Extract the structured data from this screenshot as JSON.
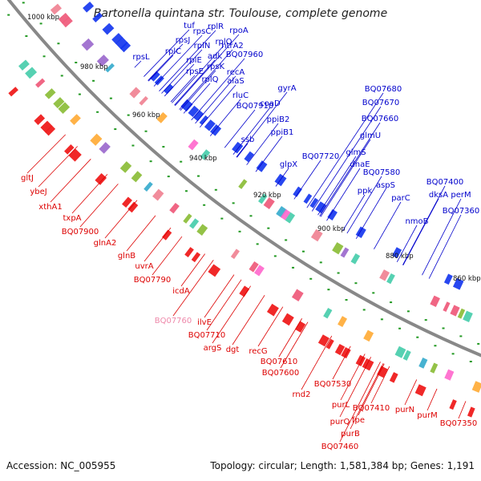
{
  "title": "Bartonella quintana str. Toulouse, complete genome",
  "footer": {
    "accession": "Accession: NC_005955",
    "topology": "Topology: circular; Length: 1,581,384 bp; Genes: 1,191"
  },
  "colors": {
    "forward_labels": "#0000cc",
    "reverse_labels": "#dd0000",
    "pseudo_label": "#ee88aa",
    "backbone": "#888888"
  },
  "kbp_ticks": [
    "1000 kbp",
    "980 kbp",
    "960 kbp",
    "940 kbp",
    "920 kbp",
    "900 kbp",
    "880 kbp",
    "860 kbp"
  ],
  "forward_genes": [
    "rpsL",
    "tuf",
    "rpsJ",
    "rpsC",
    "rplR",
    "rpoA",
    "rplC",
    "rplN",
    "rplO",
    "rplE",
    "adk",
    "htrA2",
    "rpsE",
    "rpsK",
    "BQ07960",
    "recA",
    "rplQ",
    "alaS",
    "rluC",
    "BQ07910",
    "coaD",
    "gyrA",
    "ssb",
    "ppiB2",
    "ppiB1",
    "BQ07680",
    "BQ07670",
    "BQ07660",
    "glmU",
    "BQ07720",
    "glpX",
    "glmS",
    "dnaE",
    "BQ07580",
    "ppk",
    "aspS",
    "parC",
    "BQ07400",
    "nmoB",
    "dksA",
    "perM",
    "BQ07360"
  ],
  "reverse_genes": [
    "gltJ",
    "ybeJ",
    "xthA1",
    "txpA",
    "BQ07900",
    "glnA2",
    "glnB",
    "uvrA",
    "BQ07790",
    "icdA",
    "BQ07760",
    "ilvE",
    "BQ07710",
    "argS",
    "dgt",
    "recG",
    "BQ07610",
    "BQ07600",
    "rnd2",
    "BQ07530",
    "purL",
    "purQ",
    "fpe",
    "BQ07410",
    "purB",
    "BQ07460",
    "purN",
    "purM",
    "BQ07350"
  ]
}
